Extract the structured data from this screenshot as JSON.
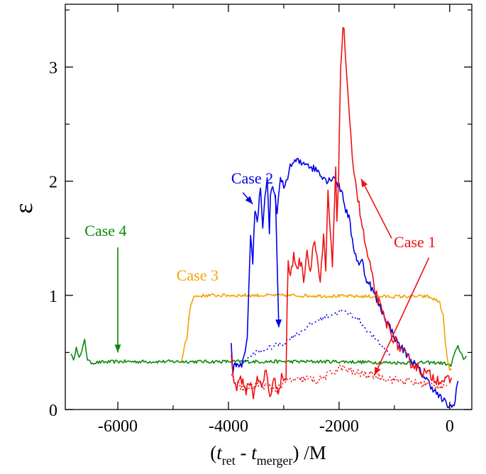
{
  "chart_data": {
    "type": "line",
    "xlabel_parts": [
      "(t",
      "ret",
      " - t",
      "merger",
      ") /M"
    ],
    "ylabel": "ε",
    "xlim": [
      -6950,
      400
    ],
    "ylim": [
      0,
      3.55
    ],
    "xticks": [
      {
        "v": -6000,
        "label": "-6000"
      },
      {
        "v": -4000,
        "label": "-4000"
      },
      {
        "v": -2000,
        "label": "-2000"
      },
      {
        "v": 0,
        "label": "0"
      }
    ],
    "yticks": [
      {
        "v": 0,
        "label": "0"
      },
      {
        "v": 1,
        "label": "1"
      },
      {
        "v": 2,
        "label": "2"
      },
      {
        "v": 3,
        "label": "3"
      }
    ],
    "series": [
      {
        "key": "case4-solid",
        "color": "#0a8a0a",
        "dash": "",
        "noise": 0.015,
        "points": [
          [
            -6850,
            0.5
          ],
          [
            -6800,
            0.42
          ],
          [
            -6750,
            0.56
          ],
          [
            -6700,
            0.45
          ],
          [
            -6650,
            0.5
          ],
          [
            -6600,
            0.62
          ],
          [
            -6550,
            0.44
          ],
          [
            -6500,
            0.41
          ],
          [
            -6000,
            0.42
          ],
          [
            -4000,
            0.42
          ],
          [
            -2000,
            0.42
          ],
          [
            -1000,
            0.41
          ],
          [
            -200,
            0.41
          ],
          [
            -50,
            0.4
          ],
          [
            20,
            0.38
          ],
          [
            80,
            0.48
          ],
          [
            150,
            0.55
          ],
          [
            200,
            0.5
          ],
          [
            250,
            0.45
          ],
          [
            300,
            0.47
          ]
        ]
      },
      {
        "key": "case3-solid",
        "color": "#f5a300",
        "dash": "",
        "noise": 0.015,
        "points": [
          [
            -4850,
            0.42
          ],
          [
            -4820,
            0.48
          ],
          [
            -4780,
            0.58
          ],
          [
            -4750,
            0.62
          ],
          [
            -4720,
            0.78
          ],
          [
            -4680,
            0.93
          ],
          [
            -4620,
            0.99
          ],
          [
            -4400,
            1.0
          ],
          [
            -3000,
            1.0
          ],
          [
            -1500,
            0.99
          ],
          [
            -400,
            0.99
          ],
          [
            -300,
            0.97
          ],
          [
            -180,
            0.94
          ],
          [
            -120,
            0.82
          ],
          [
            -80,
            0.6
          ],
          [
            -40,
            0.43
          ],
          [
            0,
            0.34
          ],
          [
            40,
            0.35
          ]
        ]
      },
      {
        "key": "case2-solid",
        "color": "#0000e6",
        "dash": "",
        "noise": 0.035,
        "points": [
          [
            -3950,
            0.6
          ],
          [
            -3920,
            0.3
          ],
          [
            -3880,
            0.42
          ],
          [
            -3800,
            0.35
          ],
          [
            -3720,
            0.45
          ],
          [
            -3660,
            0.6
          ],
          [
            -3620,
            1.2
          ],
          [
            -3600,
            1.5
          ],
          [
            -3560,
            1.3
          ],
          [
            -3520,
            1.75
          ],
          [
            -3480,
            1.65
          ],
          [
            -3420,
            1.95
          ],
          [
            -3380,
            1.6
          ],
          [
            -3340,
            1.85
          ],
          [
            -3300,
            2.05
          ],
          [
            -3260,
            1.55
          ],
          [
            -3240,
            1.85
          ],
          [
            -3200,
            1.95
          ],
          [
            -3120,
            1.75
          ],
          [
            -3060,
            2.0
          ],
          [
            -2980,
            1.95
          ],
          [
            -2930,
            2.05
          ],
          [
            -2860,
            2.15
          ],
          [
            -2760,
            2.18
          ],
          [
            -2680,
            2.15
          ],
          [
            -2600,
            2.17
          ],
          [
            -2500,
            2.12
          ],
          [
            -2400,
            2.1
          ],
          [
            -2300,
            2.05
          ],
          [
            -2200,
            2.0
          ],
          [
            -2100,
            2.05
          ],
          [
            -2000,
            1.95
          ],
          [
            -1940,
            1.9
          ],
          [
            -1880,
            1.75
          ],
          [
            -1820,
            1.68
          ],
          [
            -1760,
            1.48
          ],
          [
            -1700,
            1.35
          ],
          [
            -1640,
            1.28
          ],
          [
            -1580,
            1.3
          ],
          [
            -1520,
            1.15
          ],
          [
            -1460,
            1.12
          ],
          [
            -1400,
            1.05
          ],
          [
            -1340,
            0.98
          ],
          [
            -1280,
            0.92
          ],
          [
            -1200,
            0.84
          ],
          [
            -1120,
            0.76
          ],
          [
            -1040,
            0.68
          ],
          [
            -960,
            0.6
          ],
          [
            -880,
            0.55
          ],
          [
            -800,
            0.5
          ],
          [
            -720,
            0.45
          ],
          [
            -640,
            0.4
          ],
          [
            -560,
            0.35
          ],
          [
            -480,
            0.3
          ],
          [
            -400,
            0.25
          ],
          [
            -320,
            0.2
          ],
          [
            -240,
            0.14
          ],
          [
            -160,
            0.1
          ],
          [
            -80,
            0.06
          ],
          [
            -20,
            0.03
          ],
          [
            40,
            0.02
          ],
          [
            80,
            0.04
          ],
          [
            120,
            0.18
          ],
          [
            150,
            0.25
          ]
        ]
      },
      {
        "key": "case2-dotted",
        "color": "#0000e6",
        "dash": "2 4",
        "noise": 0.02,
        "points": [
          [
            -3950,
            0.42
          ],
          [
            -3800,
            0.38
          ],
          [
            -3650,
            0.45
          ],
          [
            -3500,
            0.5
          ],
          [
            -3350,
            0.52
          ],
          [
            -3200,
            0.55
          ],
          [
            -3100,
            0.57
          ],
          [
            -3000,
            0.58
          ],
          [
            -2900,
            0.62
          ],
          [
            -2700,
            0.68
          ],
          [
            -2500,
            0.75
          ],
          [
            -2300,
            0.8
          ],
          [
            -2100,
            0.84
          ],
          [
            -1950,
            0.86
          ],
          [
            -1800,
            0.84
          ],
          [
            -1650,
            0.79
          ],
          [
            -1500,
            0.7
          ],
          [
            -1350,
            0.62
          ],
          [
            -1200,
            0.55
          ],
          [
            -1050,
            0.47
          ]
        ]
      },
      {
        "key": "case1-solid",
        "color": "#ee1111",
        "dash": "",
        "noise": 0.05,
        "points": [
          [
            -3950,
            0.45
          ],
          [
            -3900,
            0.28
          ],
          [
            -3850,
            0.18
          ],
          [
            -3780,
            0.3
          ],
          [
            -3700,
            0.15
          ],
          [
            -3620,
            0.25
          ],
          [
            -3550,
            0.12
          ],
          [
            -3480,
            0.3
          ],
          [
            -3400,
            0.18
          ],
          [
            -3320,
            0.35
          ],
          [
            -3250,
            0.12
          ],
          [
            -3180,
            0.25
          ],
          [
            -3100,
            0.18
          ],
          [
            -3020,
            0.3
          ],
          [
            -2960,
            0.25
          ],
          [
            -2940,
            0.9
          ],
          [
            -2920,
            1.3
          ],
          [
            -2880,
            1.15
          ],
          [
            -2820,
            1.35
          ],
          [
            -2760,
            1.25
          ],
          [
            -2700,
            1.3
          ],
          [
            -2640,
            1.15
          ],
          [
            -2580,
            1.4
          ],
          [
            -2520,
            1.2
          ],
          [
            -2460,
            1.5
          ],
          [
            -2400,
            1.35
          ],
          [
            -2340,
            1.1
          ],
          [
            -2280,
            1.5
          ],
          [
            -2240,
            1.2
          ],
          [
            -2200,
            1.9
          ],
          [
            -2160,
            1.55
          ],
          [
            -2120,
            1.25
          ],
          [
            -2090,
            1.7
          ],
          [
            -2060,
            2.1
          ],
          [
            -2040,
            1.6
          ],
          [
            -2010,
            2.0
          ],
          [
            -1990,
            2.6
          ],
          [
            -1970,
            3.0
          ],
          [
            -1950,
            3.2
          ],
          [
            -1930,
            3.3
          ],
          [
            -1910,
            3.35
          ],
          [
            -1890,
            3.15
          ],
          [
            -1870,
            3.0
          ],
          [
            -1850,
            2.8
          ],
          [
            -1830,
            2.65
          ],
          [
            -1810,
            2.5
          ],
          [
            -1790,
            2.45
          ],
          [
            -1760,
            2.25
          ],
          [
            -1730,
            2.1
          ],
          [
            -1700,
            2.0
          ],
          [
            -1660,
            1.85
          ],
          [
            -1620,
            1.72
          ],
          [
            -1580,
            1.6
          ],
          [
            -1540,
            1.48
          ],
          [
            -1500,
            1.38
          ],
          [
            -1440,
            1.25
          ],
          [
            -1380,
            1.1
          ],
          [
            -1320,
            1.0
          ],
          [
            -1260,
            0.9
          ],
          [
            -1200,
            0.82
          ],
          [
            -1120,
            0.73
          ],
          [
            -1040,
            0.65
          ],
          [
            -960,
            0.58
          ],
          [
            -880,
            0.52
          ],
          [
            -800,
            0.47
          ],
          [
            -720,
            0.42
          ],
          [
            -640,
            0.39
          ],
          [
            -560,
            0.36
          ],
          [
            -480,
            0.33
          ],
          [
            -400,
            0.31
          ],
          [
            -320,
            0.29
          ],
          [
            -240,
            0.27
          ],
          [
            -160,
            0.26
          ],
          [
            -80,
            0.25
          ],
          [
            -20,
            0.25
          ],
          [
            30,
            0.28
          ]
        ]
      },
      {
        "key": "case1-dotted",
        "color": "#ee1111",
        "dash": "2 3",
        "noise": 0.035,
        "points": [
          [
            -3950,
            0.3
          ],
          [
            -3800,
            0.2
          ],
          [
            -3650,
            0.18
          ],
          [
            -3500,
            0.22
          ],
          [
            -3300,
            0.2
          ],
          [
            -3150,
            0.17
          ],
          [
            -3000,
            0.22
          ],
          [
            -2900,
            0.26
          ],
          [
            -2800,
            0.25
          ],
          [
            -2600,
            0.27
          ],
          [
            -2400,
            0.25
          ],
          [
            -2200,
            0.3
          ],
          [
            -2050,
            0.35
          ],
          [
            -1950,
            0.37
          ],
          [
            -1850,
            0.34
          ],
          [
            -1700,
            0.32
          ],
          [
            -1550,
            0.31
          ],
          [
            -1400,
            0.3
          ],
          [
            -1200,
            0.28
          ],
          [
            -1000,
            0.26
          ],
          [
            -800,
            0.25
          ],
          [
            -600,
            0.23
          ],
          [
            -400,
            0.22
          ],
          [
            -200,
            0.21
          ],
          [
            -50,
            0.21
          ]
        ]
      }
    ],
    "annotations": [
      {
        "text": "Case 1",
        "color": "#ee1111",
        "tx": -250,
        "ty": 1.42,
        "anchor": "end",
        "arrows": [
          {
            "from": [
              -1050,
              1.5
            ],
            "to": [
              -1600,
              2.02
            ]
          },
          {
            "from": [
              -375,
              1.33
            ],
            "to": [
              -1360,
              0.3
            ]
          }
        ]
      },
      {
        "text": "Case 2",
        "color": "#0000e6",
        "tx": -3950,
        "ty": 1.98,
        "anchor": "start",
        "arrows": [
          {
            "from": [
              -3740,
              1.9
            ],
            "to": [
              -3560,
              1.8
            ]
          },
          {
            "from": [
              -3150,
              1.88
            ],
            "to": [
              -3090,
              0.72
            ]
          }
        ]
      },
      {
        "text": "Case 3",
        "color": "#f5a300",
        "tx": -4940,
        "ty": 1.13,
        "anchor": "start",
        "arrows": []
      },
      {
        "text": "Case 4",
        "color": "#0a8a0a",
        "tx": -6600,
        "ty": 1.52,
        "anchor": "start",
        "arrows": [
          {
            "from": [
              -6000,
              1.42
            ],
            "to": [
              -6000,
              0.5
            ]
          }
        ]
      }
    ]
  }
}
